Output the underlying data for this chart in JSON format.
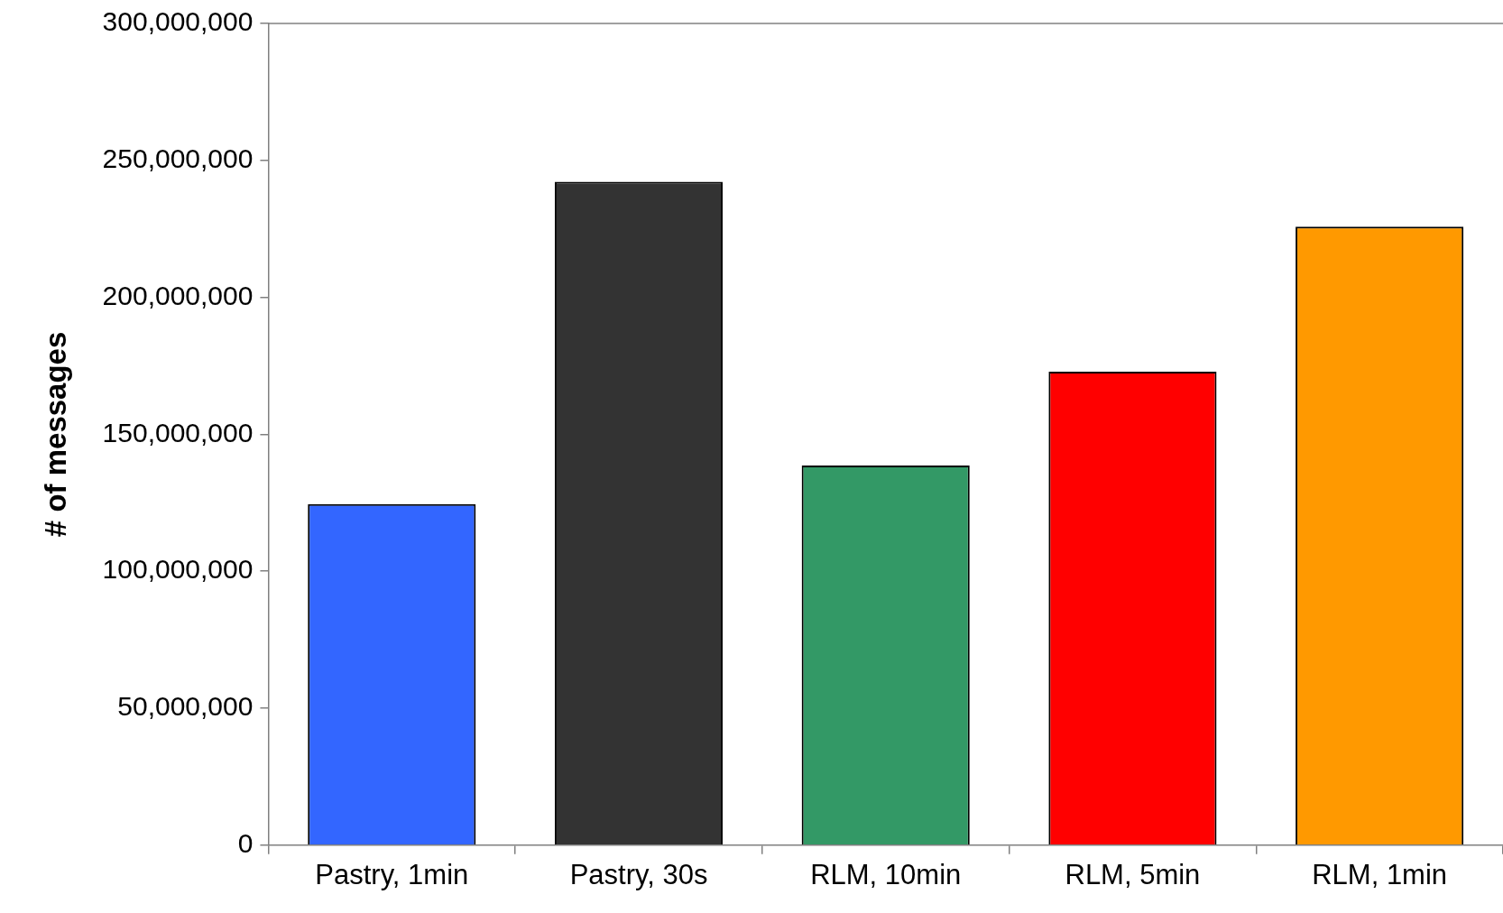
{
  "chart_data": {
    "type": "bar",
    "ylabel": "# of messages",
    "categories": [
      "Pastry, 1min",
      "Pastry, 30s",
      "RLM, 10min",
      "RLM, 5min",
      "RLM, 1min"
    ],
    "values": [
      124500000,
      242200000,
      138600000,
      172900000,
      225800000
    ],
    "colors": [
      "#3366ff",
      "#333333",
      "#339966",
      "#ff0000",
      "#ff9900"
    ],
    "ylim": [
      0,
      300000000
    ],
    "yticks": [
      0,
      {
        "value": 50000000,
        "label": "50,000,000"
      },
      {
        "value": 100000000,
        "label": "100,000,000"
      },
      {
        "value": 150000000,
        "label": "150,000,000"
      },
      {
        "value": 200000000,
        "label": "200,000,000"
      },
      {
        "value": 250000000,
        "label": "250,000,000"
      },
      {
        "value": 300000000,
        "label": "300,000,000"
      }
    ],
    "grid": false,
    "legend": false
  }
}
